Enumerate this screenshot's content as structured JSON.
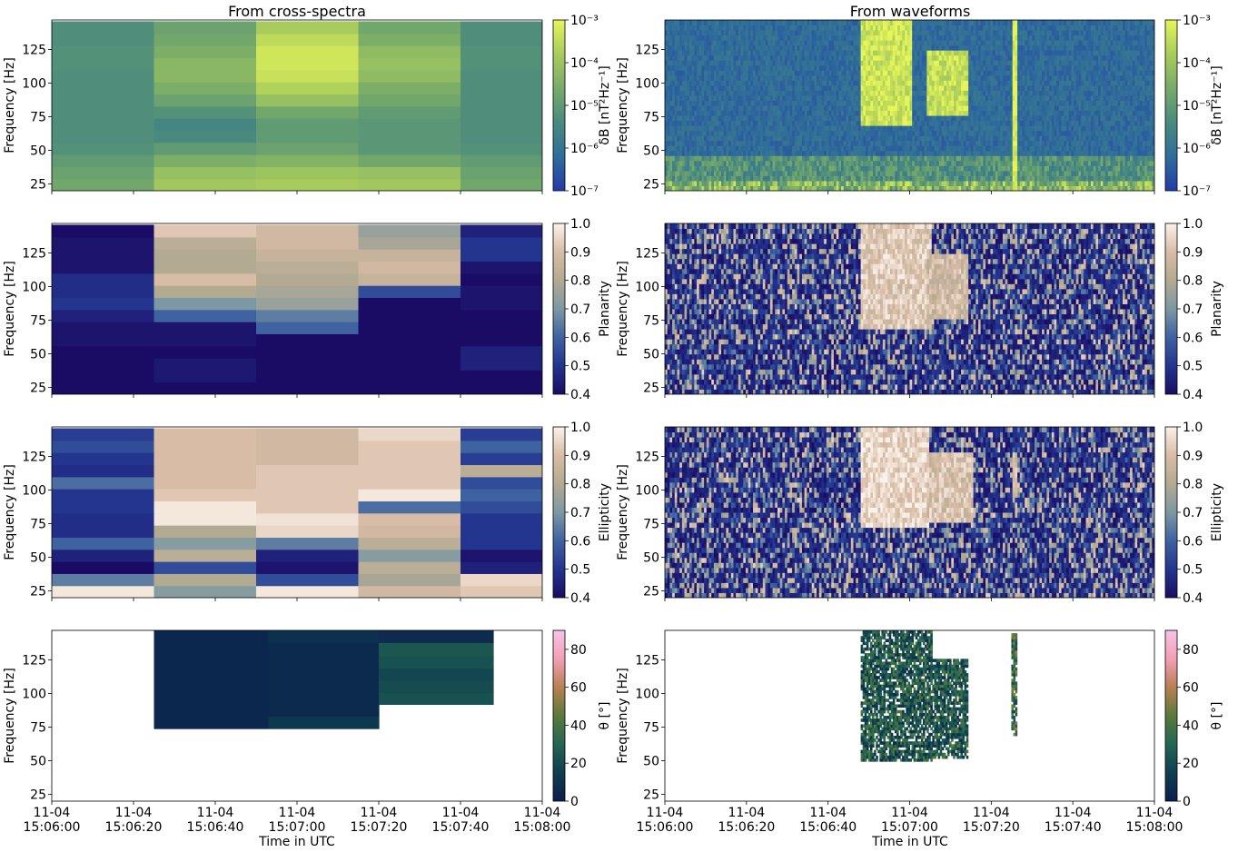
{
  "column_titles": [
    "From cross-spectra",
    "From waveforms"
  ],
  "x_axis": {
    "label": "Time in UTC",
    "ticks": [
      {
        "date": "11-04",
        "time": "15:06:00"
      },
      {
        "date": "11-04",
        "time": "15:06:20"
      },
      {
        "date": "11-04",
        "time": "15:06:40"
      },
      {
        "date": "11-04",
        "time": "15:07:00"
      },
      {
        "date": "11-04",
        "time": "15:07:20"
      },
      {
        "date": "11-04",
        "time": "15:07:40"
      },
      {
        "date": "11-04",
        "time": "15:08:00"
      }
    ]
  },
  "y_axis": {
    "label": "Frequency [Hz]",
    "ticks": [
      "25",
      "50",
      "75",
      "100",
      "125"
    ]
  },
  "colorbars": [
    {
      "label": "δB [nT²Hz⁻¹]",
      "scale": "log",
      "ticks": [
        "10⁻⁷",
        "10⁻⁶",
        "10⁻⁵",
        "10⁻⁴",
        "10⁻³"
      ],
      "colormap": [
        "#233ba8",
        "#2f6d9a",
        "#4a8a7e",
        "#78ab69",
        "#a8cc5c",
        "#e6f55a"
      ]
    },
    {
      "label": "Planarity",
      "scale": "linear",
      "ticks": [
        "0.4",
        "0.5",
        "0.6",
        "0.7",
        "0.8",
        "0.9",
        "1.0"
      ],
      "colormap": [
        "#1a0c64",
        "#23358f",
        "#3f62a0",
        "#7c98a4",
        "#b3aa92",
        "#d8bca6",
        "#fbf2ea"
      ]
    },
    {
      "label": "Ellipticity",
      "scale": "linear",
      "ticks": [
        "0.4",
        "0.5",
        "0.6",
        "0.7",
        "0.8",
        "0.9",
        "1.0"
      ],
      "colormap": [
        "#1a0c64",
        "#23358f",
        "#3f62a0",
        "#7c98a4",
        "#b3aa92",
        "#d8bca6",
        "#fbf2ea"
      ]
    },
    {
      "label": "θ [°]",
      "scale": "linear",
      "ticks": [
        "0",
        "20",
        "40",
        "60",
        "80"
      ],
      "colormap": [
        "#0b1f4d",
        "#0f3e4f",
        "#236653",
        "#5a7a3a",
        "#b98052",
        "#f2a0b4",
        "#f7c3e6"
      ]
    }
  ],
  "chart_data": [
    {
      "type": "heatmap",
      "title": "From cross-spectra",
      "quantity": "δB [nT²Hz⁻¹]",
      "xlabel": "",
      "ylabel": "Frequency [Hz]",
      "time_range": [
        "15:06:00",
        "15:08:00"
      ],
      "ylim": [
        20,
        147
      ],
      "clim": [
        1e-07,
        0.001
      ],
      "time_bins": [
        "15:06:00",
        "15:06:25",
        "15:06:50",
        "15:07:15",
        "15:07:40",
        "15:08:05"
      ],
      "freq_bins": [
        20,
        29,
        38,
        47,
        56,
        65,
        74,
        83,
        92,
        101,
        110,
        119,
        128,
        137,
        146
      ],
      "values": [
        [
          2e-05,
          0.00012,
          0.00015,
          0.00012,
          2e-05
        ],
        [
          1.5e-05,
          8e-05,
          0.0001,
          8e-05,
          1.5e-05
        ],
        [
          1e-05,
          3e-05,
          4e-05,
          2e-05,
          1e-05
        ],
        [
          6e-06,
          1e-05,
          1.5e-05,
          8e-06,
          6e-06
        ],
        [
          5e-06,
          4e-06,
          1e-05,
          8e-06,
          5e-06
        ],
        [
          5e-06,
          3e-06,
          1e-05,
          8e-06,
          5e-06
        ],
        [
          5e-06,
          6e-06,
          2e-05,
          1e-05,
          5e-06
        ],
        [
          5e-06,
          1.5e-05,
          8e-05,
          2e-05,
          5e-06
        ],
        [
          5e-06,
          3e-05,
          0.0002,
          3e-05,
          5e-06
        ],
        [
          5e-06,
          5e-05,
          0.0004,
          6e-05,
          5e-06
        ],
        [
          6e-06,
          5e-05,
          0.0005,
          8e-05,
          6e-06
        ],
        [
          6e-06,
          3e-05,
          0.0005,
          6e-05,
          6e-06
        ],
        [
          5e-06,
          2e-05,
          0.0003,
          3e-05,
          5e-06
        ],
        [
          5e-06,
          1.5e-05,
          0.00015,
          2e-05,
          5e-06
        ]
      ]
    },
    {
      "type": "heatmap",
      "title": "From waveforms",
      "quantity": "δB [nT²Hz⁻¹]",
      "xlabel": "",
      "ylabel": "Frequency [Hz]",
      "time_range": [
        "15:06:00",
        "15:08:00"
      ],
      "ylim": [
        20,
        147
      ],
      "clim": [
        1e-07,
        0.001
      ],
      "features": [
        {
          "t_from": "15:06:48",
          "t_to": "15:07:00",
          "f_from": 70,
          "f_to": 147,
          "level": 0.0005
        },
        {
          "t_from": "15:07:04",
          "t_to": "15:07:14",
          "f_from": 75,
          "f_to": 125,
          "level": 0.0004
        },
        {
          "t_from": "15:07:25",
          "t_to": "15:07:26",
          "f_from": 20,
          "f_to": 147,
          "level": 0.0008
        }
      ]
    },
    {
      "type": "heatmap",
      "quantity": "Planarity",
      "xlabel": "",
      "ylabel": "Frequency [Hz]",
      "time_range": [
        "15:06:00",
        "15:08:00"
      ],
      "ylim": [
        20,
        147
      ],
      "clim": [
        0.4,
        1.0
      ],
      "time_bins": [
        "15:06:00",
        "15:06:25",
        "15:06:50",
        "15:07:15",
        "15:07:40",
        "15:08:05"
      ],
      "freq_bins": [
        20,
        29,
        38,
        47,
        56,
        65,
        74,
        83,
        92,
        101,
        110,
        119,
        128,
        137,
        146
      ],
      "values": [
        [
          0.4,
          0.4,
          0.4,
          0.4,
          0.4
        ],
        [
          0.4,
          0.43,
          0.4,
          0.4,
          0.4
        ],
        [
          0.4,
          0.43,
          0.4,
          0.4,
          0.45
        ],
        [
          0.4,
          0.4,
          0.4,
          0.4,
          0.45
        ],
        [
          0.42,
          0.42,
          0.4,
          0.4,
          0.4
        ],
        [
          0.42,
          0.42,
          0.6,
          0.4,
          0.4
        ],
        [
          0.45,
          0.6,
          0.65,
          0.4,
          0.4
        ],
        [
          0.5,
          0.7,
          0.75,
          0.4,
          0.42
        ],
        [
          0.48,
          0.8,
          0.78,
          0.55,
          0.42
        ],
        [
          0.48,
          0.9,
          0.8,
          0.85,
          0.4
        ],
        [
          0.42,
          0.8,
          0.82,
          0.88,
          0.42
        ],
        [
          0.42,
          0.8,
          0.85,
          0.85,
          0.5
        ],
        [
          0.42,
          0.82,
          0.88,
          0.78,
          0.5
        ],
        [
          0.4,
          0.92,
          0.88,
          0.75,
          0.45
        ]
      ]
    },
    {
      "type": "heatmap",
      "quantity": "Planarity",
      "xlabel": "",
      "ylabel": "Frequency [Hz]",
      "time_range": [
        "15:06:00",
        "15:08:00"
      ],
      "ylim": [
        20,
        147
      ],
      "clim": [
        0.4,
        1.0
      ],
      "features": [
        {
          "t_from": "15:06:48",
          "t_to": "15:07:05",
          "f_from": 70,
          "f_to": 147,
          "level": 0.92
        },
        {
          "t_from": "15:07:04",
          "t_to": "15:07:14",
          "f_from": 75,
          "f_to": 125,
          "level": 0.88
        }
      ]
    },
    {
      "type": "heatmap",
      "quantity": "Ellipticity",
      "xlabel": "",
      "ylabel": "Frequency [Hz]",
      "time_range": [
        "15:06:00",
        "15:08:00"
      ],
      "ylim": [
        20,
        147
      ],
      "clim": [
        0.4,
        1.0
      ],
      "time_bins": [
        "15:06:00",
        "15:06:25",
        "15:06:50",
        "15:07:15",
        "15:07:40",
        "15:08:05"
      ],
      "freq_bins": [
        20,
        29,
        38,
        47,
        56,
        65,
        74,
        83,
        92,
        101,
        110,
        119,
        128,
        137,
        146
      ],
      "values": [
        [
          0.98,
          0.72,
          0.98,
          0.88,
          0.92
        ],
        [
          0.65,
          0.8,
          0.55,
          0.78,
          0.95
        ],
        [
          0.4,
          0.55,
          0.42,
          0.82,
          0.45
        ],
        [
          0.45,
          0.82,
          0.45,
          0.72,
          0.42
        ],
        [
          0.6,
          0.72,
          0.65,
          0.82,
          0.5
        ],
        [
          0.48,
          0.8,
          0.95,
          0.88,
          0.5
        ],
        [
          0.48,
          0.98,
          0.97,
          0.9,
          0.5
        ],
        [
          0.5,
          0.98,
          0.92,
          0.62,
          0.55
        ],
        [
          0.5,
          0.92,
          0.92,
          0.98,
          0.6
        ],
        [
          0.62,
          0.9,
          0.92,
          0.92,
          0.55
        ],
        [
          0.48,
          0.9,
          0.92,
          0.92,
          0.82
        ],
        [
          0.5,
          0.9,
          0.88,
          0.92,
          0.52
        ],
        [
          0.55,
          0.9,
          0.88,
          0.92,
          0.6
        ],
        [
          0.52,
          0.9,
          0.88,
          0.95,
          0.52
        ]
      ]
    },
    {
      "type": "heatmap",
      "quantity": "Ellipticity",
      "xlabel": "",
      "ylabel": "Frequency [Hz]",
      "time_range": [
        "15:06:00",
        "15:08:00"
      ],
      "ylim": [
        20,
        147
      ],
      "clim": [
        0.4,
        1.0
      ],
      "features": [
        {
          "t_from": "15:06:48",
          "t_to": "15:07:04",
          "f_from": 72,
          "f_to": 147,
          "level": 0.95
        },
        {
          "t_from": "15:07:04",
          "t_to": "15:07:15",
          "f_from": 75,
          "f_to": 128,
          "level": 0.9
        },
        {
          "t_from": "15:07:25",
          "t_to": "15:07:26",
          "f_from": 95,
          "f_to": 130,
          "level": 0.9
        }
      ]
    },
    {
      "type": "heatmap",
      "quantity": "θ [°]",
      "xlabel": "Time in UTC",
      "ylabel": "Frequency [Hz]",
      "time_range": [
        "15:06:00",
        "15:08:00"
      ],
      "ylim": [
        20,
        147
      ],
      "clim": [
        0,
        90
      ],
      "cells": [
        {
          "t_from": "15:06:25",
          "t_to": "15:06:53",
          "f_from": 74,
          "f_to": 147,
          "value": 4
        },
        {
          "t_from": "15:06:53",
          "t_to": "15:07:20",
          "f_from": 83,
          "f_to": 138,
          "value": 5
        },
        {
          "t_from": "15:06:53",
          "t_to": "15:07:20",
          "f_from": 138,
          "f_to": 147,
          "value": 8
        },
        {
          "t_from": "15:06:53",
          "t_to": "15:07:20",
          "f_from": 74,
          "f_to": 83,
          "value": 12
        },
        {
          "t_from": "15:07:20",
          "t_to": "15:07:48",
          "f_from": 92,
          "f_to": 101,
          "value": 22
        },
        {
          "t_from": "15:07:20",
          "t_to": "15:07:48",
          "f_from": 101,
          "f_to": 110,
          "value": 20
        },
        {
          "t_from": "15:07:20",
          "t_to": "15:07:48",
          "f_from": 110,
          "f_to": 119,
          "value": 18
        },
        {
          "t_from": "15:07:20",
          "t_to": "15:07:48",
          "f_from": 119,
          "f_to": 128,
          "value": 22
        },
        {
          "t_from": "15:07:20",
          "t_to": "15:07:48",
          "f_from": 128,
          "f_to": 138,
          "value": 24
        },
        {
          "t_from": "15:07:20",
          "t_to": "15:07:48",
          "f_from": 138,
          "f_to": 147,
          "value": 6
        }
      ]
    },
    {
      "type": "heatmap",
      "quantity": "θ [°]",
      "xlabel": "Time in UTC",
      "ylabel": "Frequency [Hz]",
      "time_range": [
        "15:06:00",
        "15:08:00"
      ],
      "ylim": [
        20,
        147
      ],
      "clim": [
        0,
        90
      ],
      "features": [
        {
          "t_from": "15:06:48",
          "t_to": "15:07:05",
          "f_from": 50,
          "f_to": 147,
          "level": 25
        },
        {
          "t_from": "15:07:05",
          "t_to": "15:07:14",
          "f_from": 52,
          "f_to": 125,
          "level": 25
        },
        {
          "t_from": "15:07:25",
          "t_to": "15:07:26",
          "f_from": 68,
          "f_to": 145,
          "level": 35
        }
      ]
    }
  ]
}
